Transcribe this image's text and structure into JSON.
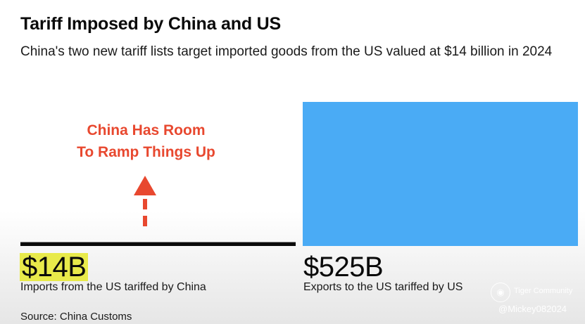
{
  "header": {
    "title": "Tariff Imposed by China and US",
    "subtitle": "China's two new tariff lists target imported goods from the US valued at $14 billion in 2024"
  },
  "annotation": {
    "line1": "China Has Room",
    "line2": "To Ramp Things Up"
  },
  "chart_data": {
    "type": "bar",
    "unit": "USD billions",
    "categories": [
      "Imports from the US tariffed by China",
      "Exports to the US tariffed by US"
    ],
    "values": [
      14,
      525
    ],
    "value_labels": [
      "$14B",
      "$525B"
    ],
    "colors": [
      "#0a0a0a",
      "#4aabf5"
    ],
    "highlight_color": "#e8ea4a",
    "annotation_color": "#e8482f",
    "grid": false
  },
  "footer": {
    "source": "Source: China Customs"
  },
  "watermark": {
    "logo_icon": "tiger-logo-icon",
    "brand": "Tiger Community",
    "handle": "@Mickey082024"
  }
}
